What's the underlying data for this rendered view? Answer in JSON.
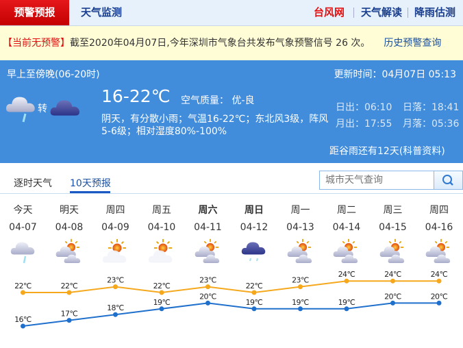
{
  "nav": {
    "active_tab": "预警预报",
    "tab2": "天气监测",
    "links": [
      "台风网",
      "天气解读",
      "降雨估测"
    ]
  },
  "warning_bar": {
    "status": "【当前无预警】",
    "text": "截至2020年04月07日,今年深圳市气象台共发布气象预警信号 26 次。",
    "history_link": "历史预警查询"
  },
  "today": {
    "period": "早上至傍晚(06-20时)",
    "update_time": "更新时间：04月07日 05:13",
    "turn_label": "转",
    "icons": [
      "cloud-rain-icon",
      "dark-cloud-icon"
    ],
    "temp": "16-22℃",
    "air_quality": "空气质量： 优-良",
    "desc_line1": "阴天，有分散小雨；气温16-22℃；东北风3级，阵风",
    "desc_line2": "5-6级；相对湿度80%-100%",
    "sunrise": "日出：06:10",
    "sunset": "日落：18:41",
    "moonrise": "月出：17:55",
    "moonset": "月落：05:36",
    "solar_term": "距谷雨还有12天(科普资料)"
  },
  "tabs": [
    {
      "label": "逐时天气",
      "active": false
    },
    {
      "label": "10天预报",
      "active": true
    }
  ],
  "search": {
    "placeholder": "城市天气查询",
    "icon": "search-icon"
  },
  "colors": {
    "high": "#f5a81c",
    "low": "#1f6fcc",
    "accent": "#418ddc"
  },
  "chart_data": {
    "type": "line",
    "categories": [
      "04-07",
      "04-08",
      "04-09",
      "04-10",
      "04-11",
      "04-12",
      "04-13",
      "04-14",
      "04-15",
      "04-16"
    ],
    "weekdays": [
      "今天",
      "明天",
      "周四",
      "周五",
      "周六",
      "周日",
      "周一",
      "周二",
      "周三",
      "周四"
    ],
    "icons": [
      "cloud-rain",
      "sun-cloud",
      "sun-light-cloud",
      "sun-light-cloud",
      "sun-cloud",
      "dark-cloud-rain",
      "sun-cloud",
      "sun-cloud",
      "sun-cloud",
      "sun-cloud"
    ],
    "unit": "℃",
    "series": [
      {
        "values": [
          22,
          22,
          23,
          22,
          23,
          22,
          23,
          24,
          24,
          24
        ]
      },
      {
        "values": [
          16,
          17,
          18,
          19,
          20,
          19,
          19,
          19,
          20,
          20
        ]
      }
    ]
  }
}
